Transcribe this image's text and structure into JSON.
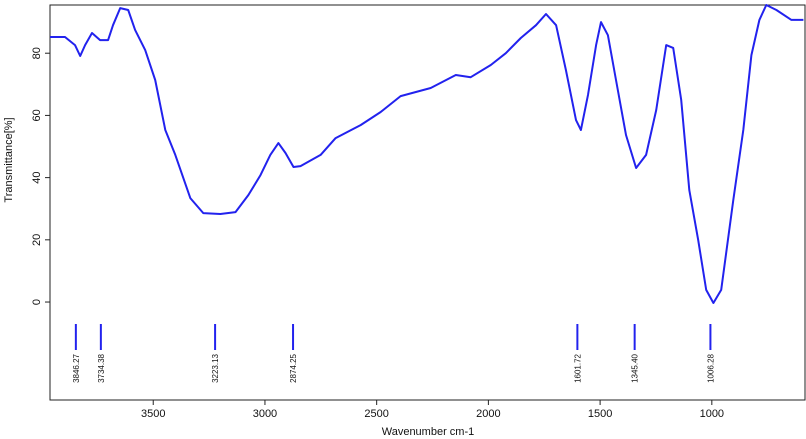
{
  "chart_data": {
    "type": "line",
    "xlabel": "Wavenumber  cm-1",
    "ylabel": "Transmittance[%]",
    "xlim": [
      3962,
      583
    ],
    "ylim": [
      -31.5,
      95.5
    ],
    "xticks": [
      3500,
      3000,
      2500,
      2000,
      1500,
      1000
    ],
    "yticks": [
      0,
      20,
      40,
      60,
      80
    ],
    "reverse_x": true,
    "series": [
      {
        "color": "#2222ee",
        "x": [
          3962,
          3895,
          3850,
          3827,
          3805,
          3774,
          3738,
          3702,
          3680,
          3648,
          3612,
          3581,
          3536,
          3491,
          3446,
          3401,
          3334,
          3276,
          3200,
          3132,
          3074,
          3020,
          2976,
          2940,
          2908,
          2872,
          2841,
          2751,
          2684,
          2572,
          2482,
          2393,
          2258,
          2146,
          2079,
          1989,
          1922,
          1855,
          1787,
          1742,
          1697,
          1653,
          1608,
          1586,
          1554,
          1518,
          1496,
          1465,
          1429,
          1384,
          1339,
          1294,
          1249,
          1204,
          1173,
          1137,
          1101,
          1061,
          1025,
          993,
          958,
          904,
          859,
          823,
          787,
          756,
          711,
          644,
          590
        ],
        "values": [
          85.2,
          85.2,
          82.6,
          79.1,
          82.6,
          86.5,
          84.2,
          84.2,
          89,
          94.5,
          93.9,
          87.5,
          81,
          71.4,
          55.3,
          47.3,
          33.4,
          28.6,
          28.3,
          28.9,
          34.4,
          40.8,
          47.3,
          51.1,
          47.9,
          43.4,
          43.7,
          47.3,
          52.7,
          56.9,
          61.1,
          66.2,
          68.8,
          73,
          72.3,
          76.2,
          80,
          84.9,
          89,
          92.6,
          89,
          74.6,
          58.5,
          55.3,
          66.6,
          82.6,
          90,
          85.8,
          71.4,
          53.7,
          43.1,
          47.3,
          61.7,
          82.6,
          81.7,
          65,
          36,
          19.9,
          3.9,
          -0.3,
          3.9,
          32.8,
          55.3,
          79.4,
          90.7,
          95.5,
          93.9,
          90.7,
          90.7
        ]
      }
    ],
    "peaks": [
      3846.27,
      3734.38,
      3223.13,
      2874.25,
      1601.72,
      {
        "value": 1345.4,
        "label": "1345.40"
      },
      1006.28
    ]
  }
}
